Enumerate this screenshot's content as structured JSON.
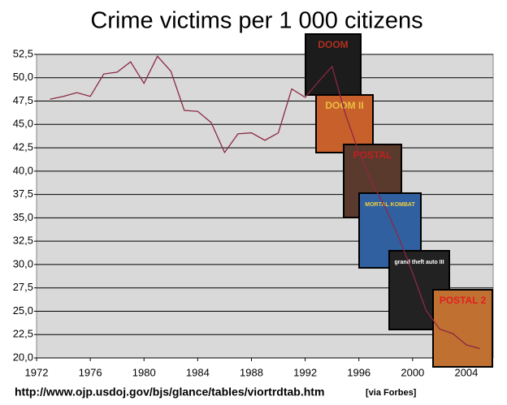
{
  "chart_data": {
    "type": "line",
    "title": "Crime victims per 1 000 citizens",
    "source": "http://www.ojp.usdoj.gov/bjs/glance/tables/viortrdtab.htm",
    "source_note": "[via Forbes]",
    "covers": [
      "DOOM",
      "DOOM II",
      "POSTAL",
      "MORTAL KOMBAT",
      "grand theft auto III",
      "POSTAL 2"
    ],
    "x": [
      1973,
      1974,
      1975,
      1976,
      1977,
      1978,
      1979,
      1980,
      1981,
      1982,
      1983,
      1984,
      1985,
      1986,
      1987,
      1988,
      1989,
      1990,
      1991,
      1992,
      1993,
      1994,
      1995,
      1996,
      1997,
      1998,
      1999,
      2000,
      2001,
      2002,
      2003,
      2004,
      2005
    ],
    "series": [
      {
        "name": "Crime victims",
        "color": "#8b2842",
        "values": [
          47.7,
          48.0,
          48.4,
          48.0,
          50.4,
          50.6,
          51.7,
          49.4,
          52.3,
          50.7,
          46.5,
          46.4,
          45.2,
          42.0,
          44.0,
          44.1,
          43.3,
          44.1,
          48.8,
          47.9,
          49.6,
          51.2,
          46.1,
          42.0,
          38.7,
          36.0,
          32.8,
          29.1,
          25.1,
          23.1,
          22.6,
          21.4,
          21.0
        ]
      }
    ],
    "xlim": [
      1972,
      2006
    ],
    "xticks": [
      1972,
      1976,
      1980,
      1984,
      1988,
      1992,
      1996,
      2000,
      2004
    ],
    "ylim": [
      20,
      52.5
    ],
    "yticks": [
      {
        "value": 20,
        "label": "20,0"
      },
      {
        "value": 22.5,
        "label": "22,5"
      },
      {
        "value": 25,
        "label": "25,0"
      },
      {
        "value": 27.5,
        "label": "27,5"
      },
      {
        "value": 30,
        "label": "30,0"
      },
      {
        "value": 32.5,
        "label": "32,5"
      },
      {
        "value": 35,
        "label": "35,0"
      },
      {
        "value": 37.5,
        "label": "37,5"
      },
      {
        "value": 40,
        "label": "40,0"
      },
      {
        "value": 42.5,
        "label": "42,5"
      },
      {
        "value": 45,
        "label": "45,0"
      },
      {
        "value": 47.5,
        "label": "47,5"
      },
      {
        "value": 50,
        "label": "50,0"
      },
      {
        "value": 52.5,
        "label": "52,5"
      }
    ],
    "grid": true
  }
}
